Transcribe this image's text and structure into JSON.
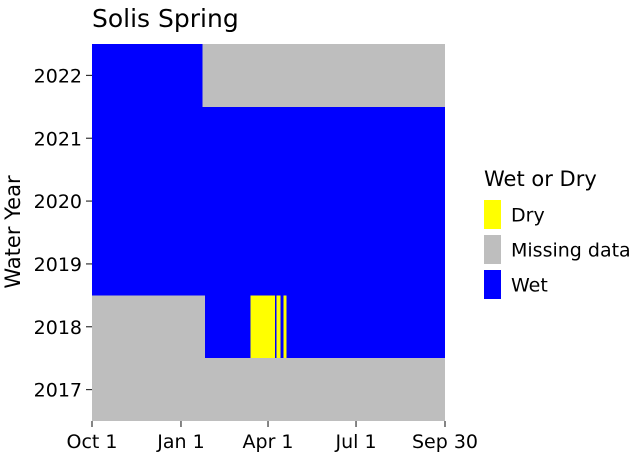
{
  "chart_data": {
    "type": "heatmap",
    "title": "Solis Spring",
    "xlabel": "",
    "ylabel": "Water Year",
    "x_axis": {
      "unit": "day of water year",
      "range": [
        0,
        365
      ],
      "ticks": [
        {
          "label": "Oct 1",
          "day": 0
        },
        {
          "label": "Jan 1",
          "day": 92
        },
        {
          "label": "Apr 1",
          "day": 182
        },
        {
          "label": "Jul 1",
          "day": 273
        },
        {
          "label": "Sep 30",
          "day": 365
        }
      ]
    },
    "y_axis": {
      "categories": [
        "2017",
        "2018",
        "2019",
        "2020",
        "2021",
        "2022"
      ]
    },
    "legend": {
      "title": "Wet or Dry",
      "placement": "right",
      "entries": [
        {
          "key": "Dry",
          "label": "Dry",
          "color": "#ffff00"
        },
        {
          "key": "Missing",
          "label": "Missing data",
          "color": "#bebebe"
        },
        {
          "key": "Wet",
          "label": "Wet",
          "color": "#0000ff"
        }
      ]
    },
    "rows": [
      {
        "year": "2017",
        "segments": [
          {
            "start": 0,
            "end": 365,
            "status": "Missing"
          }
        ]
      },
      {
        "year": "2018",
        "segments": [
          {
            "start": 0,
            "end": 117,
            "status": "Missing"
          },
          {
            "start": 117,
            "end": 164,
            "status": "Wet"
          },
          {
            "start": 164,
            "end": 189,
            "status": "Dry"
          },
          {
            "start": 189,
            "end": 191,
            "status": "Wet"
          },
          {
            "start": 191,
            "end": 195,
            "status": "Dry"
          },
          {
            "start": 195,
            "end": 198,
            "status": "Wet"
          },
          {
            "start": 198,
            "end": 201,
            "status": "Dry"
          },
          {
            "start": 201,
            "end": 365,
            "status": "Wet"
          }
        ]
      },
      {
        "year": "2019",
        "segments": [
          {
            "start": 0,
            "end": 365,
            "status": "Wet"
          }
        ]
      },
      {
        "year": "2020",
        "segments": [
          {
            "start": 0,
            "end": 365,
            "status": "Wet"
          }
        ]
      },
      {
        "year": "2021",
        "segments": [
          {
            "start": 0,
            "end": 365,
            "status": "Wet"
          }
        ]
      },
      {
        "year": "2022",
        "segments": [
          {
            "start": 0,
            "end": 114,
            "status": "Wet"
          },
          {
            "start": 114,
            "end": 365,
            "status": "Missing"
          }
        ]
      }
    ]
  }
}
